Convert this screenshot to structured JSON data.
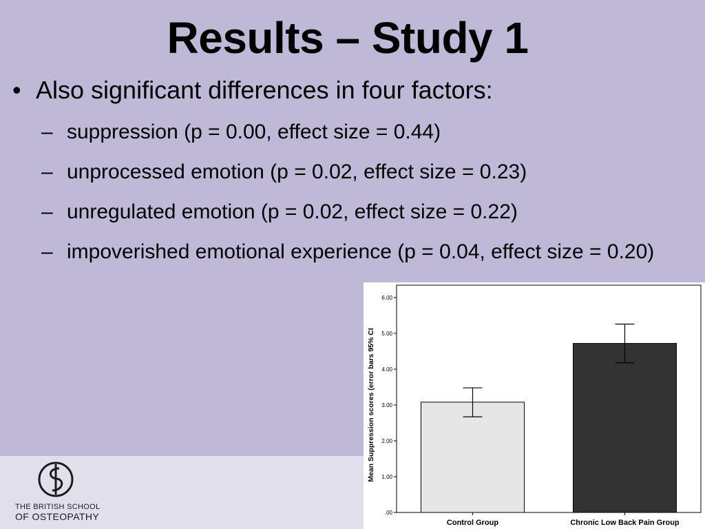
{
  "slide": {
    "title": "Results – Study 1",
    "bullet_marker": "•",
    "main_bullet": "Also significant differences in four factors:",
    "sub_bullets": [
      {
        "dash": "–",
        "text": "suppression (p = 0.00, effect size = 0.44)"
      },
      {
        "dash": "–",
        "text": "unprocessed emotion (p = 0.02, effect size = 0.23)"
      },
      {
        "dash": "–",
        "text": "unregulated emotion (p = 0.02, effect size = 0.22)"
      },
      {
        "dash": "–",
        "text": "impoverished emotional experience (p = 0.04, effect size = 0.20)"
      }
    ]
  },
  "logo": {
    "line1": "THE BRITISH SCHOOL",
    "line2": "OF OSTEOPATHY"
  },
  "colors": {
    "slide_background": "#bfb8d6",
    "footer_band": "#e2dfed",
    "control_bar": "#e6e6e6",
    "pain_bar": "#333333"
  },
  "chart_data": {
    "type": "bar",
    "categories": [
      "Control Group",
      "Chronic Low Back Pain Group"
    ],
    "values": [
      3.08,
      4.72
    ],
    "error_low": [
      2.67,
      4.18
    ],
    "error_high": [
      3.48,
      5.26
    ],
    "ylabel": "Mean Suppression scores (error bars 95% CI",
    "xlabel": "",
    "ylim": [
      0,
      6
    ],
    "yticks": [
      ".00",
      "1.00",
      "2.00",
      "3.00",
      "4.00",
      "5.00",
      "6.00"
    ],
    "grid": false
  }
}
